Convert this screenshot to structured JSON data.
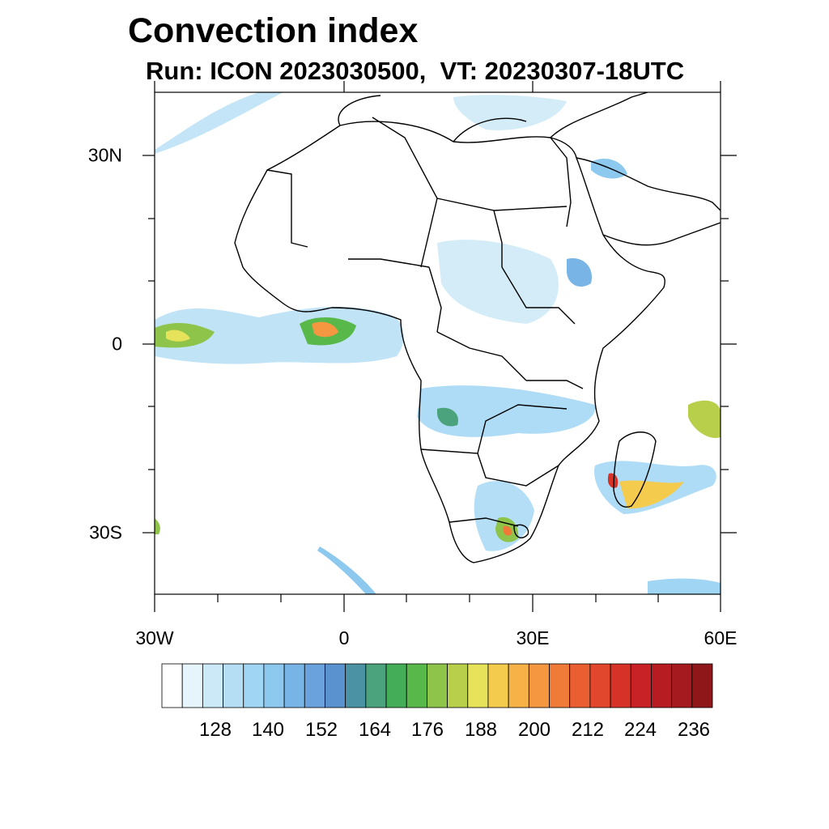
{
  "title": "Convection index",
  "subtitle": "Run: ICON 2023030500,  VT: 20230307-18UTC",
  "axes": {
    "lat_labels": [
      "30N",
      "0",
      "30S"
    ],
    "lon_labels": [
      "30W",
      "0",
      "30E",
      "60E"
    ]
  },
  "colorbar": {
    "labels": [
      "128",
      "140",
      "152",
      "164",
      "176",
      "188",
      "200",
      "212",
      "224",
      "236"
    ],
    "colors": [
      "#ffffff",
      "#e6f4fb",
      "#cce9f7",
      "#b5def5",
      "#a0d6f4",
      "#8dc9ee",
      "#78b4e6",
      "#6aa2dd",
      "#5a92d0",
      "#4b93a4",
      "#4aa37c",
      "#43ad57",
      "#59b84a",
      "#8fc44a",
      "#b8cf4c",
      "#e6e35a",
      "#f5cb4e",
      "#f6b246",
      "#f59640",
      "#f07a38",
      "#ea5f31",
      "#e1472d",
      "#d63228",
      "#c82226",
      "#b71c22",
      "#a51a1e",
      "#8f171a"
    ]
  },
  "colors": {
    "coastline": "#000000",
    "land": "#ffffff",
    "convection_low": "#a0d6f4",
    "convection_mid": "#43ad57",
    "convection_high": "#f6b246",
    "convection_extreme": "#d63228"
  }
}
